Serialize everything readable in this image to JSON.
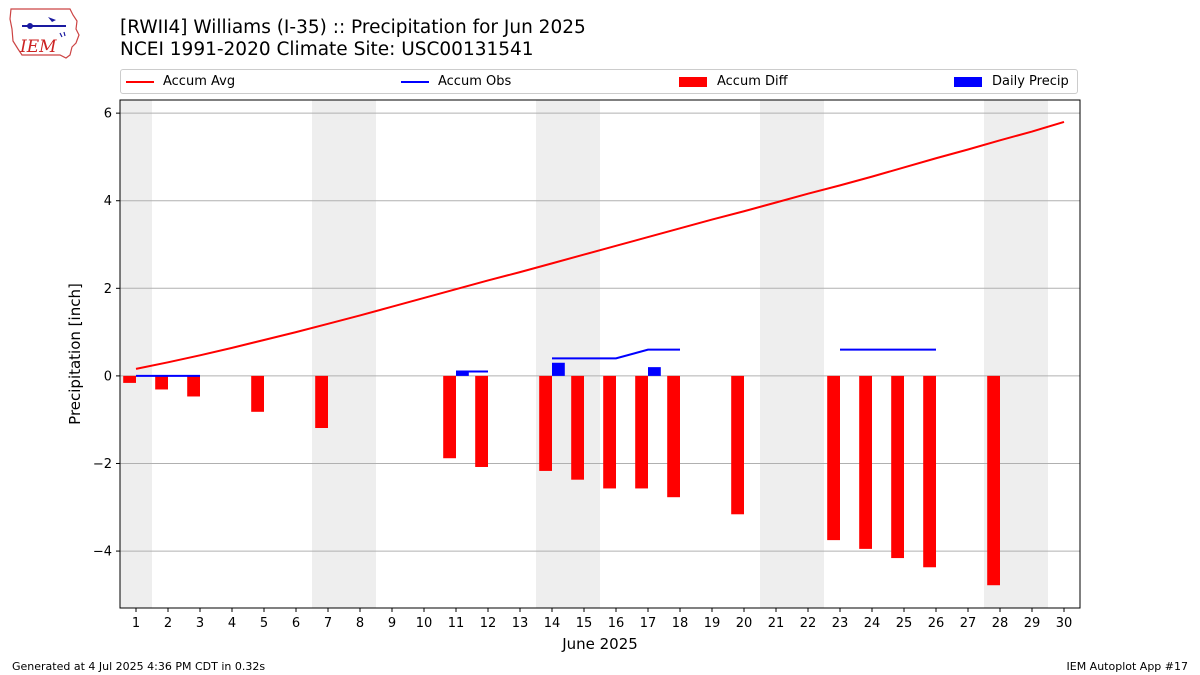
{
  "header": {
    "title_line1": "[RWII4] Williams (I-35) :: Precipitation for Jun 2025",
    "title_line2": "NCEI 1991-2020 Climate Site: USC00131541"
  },
  "logo": {
    "text": "IEM"
  },
  "legend": {
    "placement": "top",
    "items": [
      {
        "label": "Accum Avg",
        "kind": "line",
        "color": "#ff0000"
      },
      {
        "label": "Accum Obs",
        "kind": "line",
        "color": "#0000ff"
      },
      {
        "label": "Accum Diff",
        "kind": "bar",
        "color": "#ff0000"
      },
      {
        "label": "Daily Precip",
        "kind": "bar",
        "color": "#0000ff"
      }
    ]
  },
  "footer": {
    "left": "Generated at 4 Jul 2025 4:36 PM CDT in 0.32s",
    "right": "IEM Autoplot App #17"
  },
  "chart_data": {
    "type": "bar",
    "xlabel": "June 2025",
    "ylabel": "Precipitation [inch]",
    "ylim": [
      -5.3,
      6.3
    ],
    "yticks": [
      -4,
      -2,
      0,
      2,
      4,
      6
    ],
    "ytick_labels": [
      "−4",
      "−2",
      "0",
      "2",
      "4",
      "6"
    ],
    "grid": "horizontal",
    "xlim": [
      0.5,
      30.5
    ],
    "days": [
      1,
      2,
      3,
      4,
      5,
      6,
      7,
      8,
      9,
      10,
      11,
      12,
      13,
      14,
      15,
      16,
      17,
      18,
      19,
      20,
      21,
      22,
      23,
      24,
      25,
      26,
      27,
      28,
      29,
      30
    ],
    "weekend_spans": [
      [
        0.5,
        1.5
      ],
      [
        6.5,
        8.5
      ],
      [
        13.5,
        15.5
      ],
      [
        20.5,
        22.5
      ],
      [
        27.5,
        29.5
      ]
    ],
    "series": [
      {
        "name": "Accum Avg",
        "kind": "line",
        "color": "#ff0000",
        "x": [
          1,
          2,
          3,
          4,
          5,
          6,
          7,
          8,
          9,
          10,
          11,
          12,
          13,
          14,
          15,
          16,
          17,
          18,
          19,
          20,
          21,
          22,
          23,
          24,
          25,
          26,
          27,
          28,
          29,
          30
        ],
        "values": [
          0.16,
          0.31,
          0.47,
          0.64,
          0.82,
          1.0,
          1.19,
          1.38,
          1.58,
          1.78,
          1.98,
          2.18,
          2.37,
          2.57,
          2.77,
          2.97,
          3.17,
          3.37,
          3.57,
          3.76,
          3.96,
          4.16,
          4.35,
          4.55,
          4.76,
          4.97,
          5.17,
          5.38,
          5.58,
          5.8
        ]
      },
      {
        "name": "Accum Obs",
        "kind": "line",
        "color": "#0000ff",
        "segments": [
          {
            "x": [
              1,
              2,
              3
            ],
            "values": [
              0.0,
              0.0,
              0.0
            ]
          },
          {
            "x": [
              11,
              12
            ],
            "values": [
              0.1,
              0.1
            ]
          },
          {
            "x": [
              14,
              15,
              16,
              17,
              18
            ],
            "values": [
              0.4,
              0.4,
              0.4,
              0.6,
              0.6
            ]
          },
          {
            "x": [
              23,
              24,
              25,
              26
            ],
            "values": [
              0.6,
              0.6,
              0.6,
              0.6
            ]
          }
        ]
      },
      {
        "name": "Accum Diff",
        "kind": "bar",
        "color": "#ff0000",
        "x": [
          1,
          2,
          3,
          5,
          7,
          11,
          12,
          14,
          15,
          16,
          17,
          18,
          20,
          23,
          24,
          25,
          26,
          28
        ],
        "values": [
          -0.16,
          -0.31,
          -0.47,
          -0.82,
          -1.19,
          -1.88,
          -2.08,
          -2.17,
          -2.37,
          -2.57,
          -2.57,
          -2.77,
          -3.16,
          -3.75,
          -3.95,
          -4.16,
          -4.37,
          -4.78
        ]
      },
      {
        "name": "Daily Precip",
        "kind": "bar",
        "color": "#0000ff",
        "x": [
          11,
          14,
          17
        ],
        "values": [
          0.1,
          0.3,
          0.2
        ]
      }
    ]
  }
}
